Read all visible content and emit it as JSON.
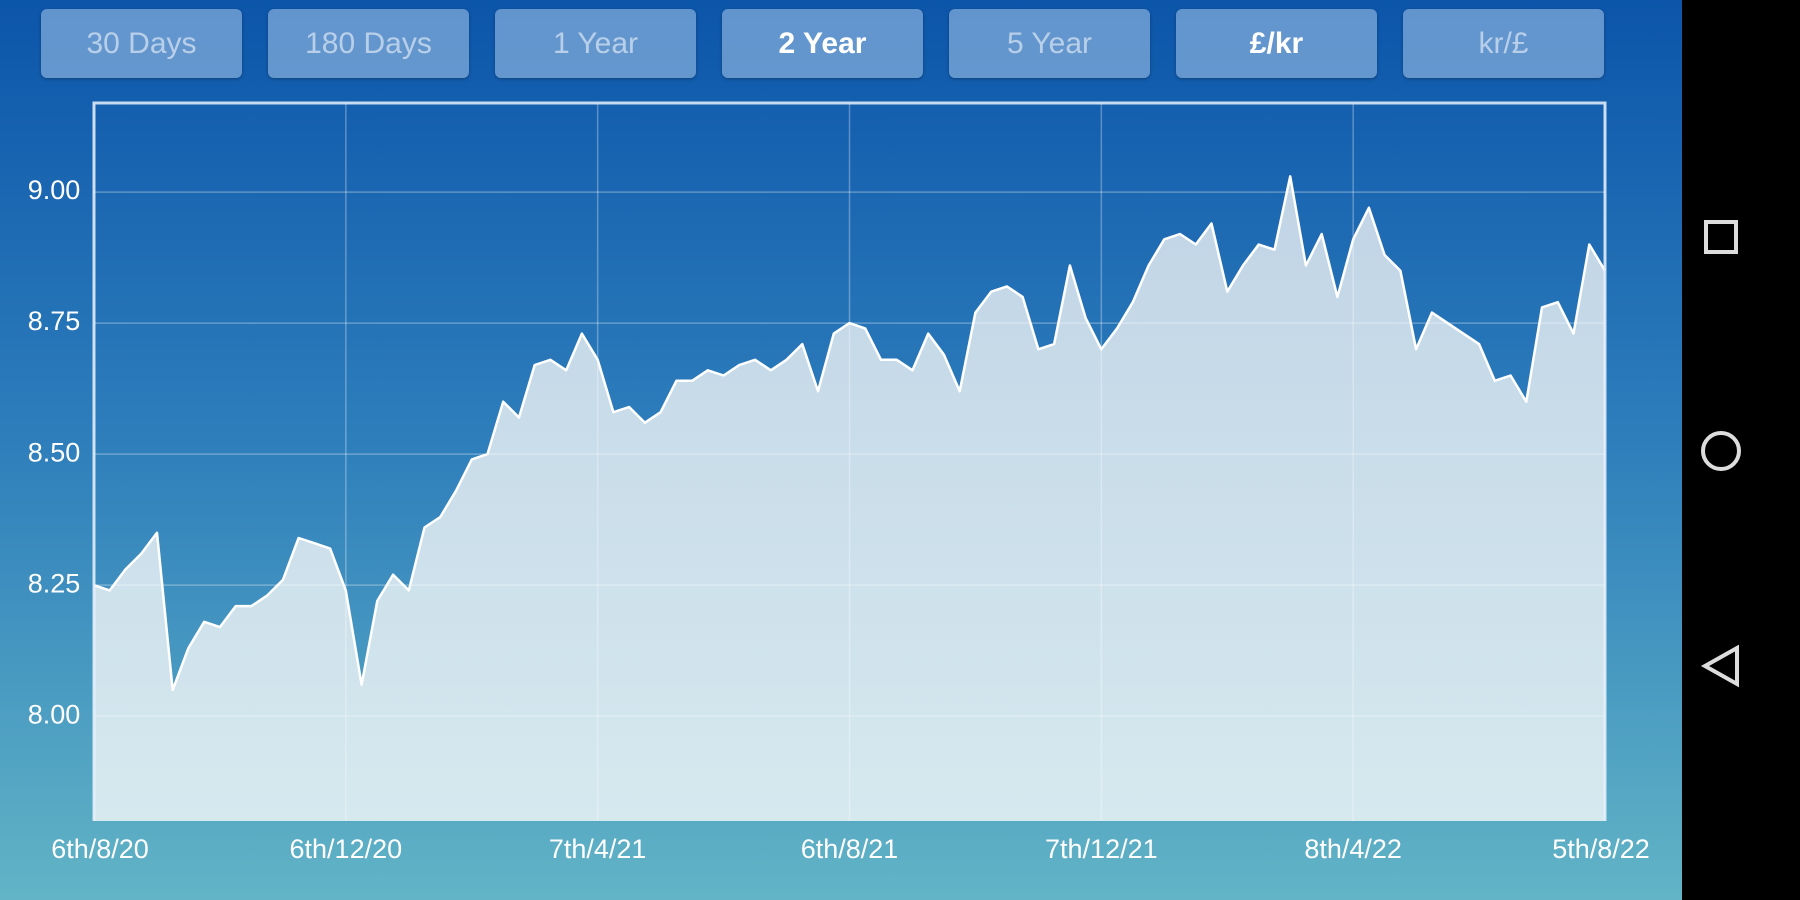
{
  "buttons": [
    {
      "label": "30 Days",
      "selected": false
    },
    {
      "label": "180 Days",
      "selected": false
    },
    {
      "label": "1 Year",
      "selected": false
    },
    {
      "label": "2 Year",
      "selected": true
    },
    {
      "label": "5 Year",
      "selected": false
    },
    {
      "label": "£/kr",
      "selected": true
    },
    {
      "label": "kr/£",
      "selected": false
    }
  ],
  "chart_data": {
    "type": "area",
    "categories": [
      "6th/8/20",
      null,
      null,
      null,
      null,
      null,
      null,
      null,
      null,
      null,
      null,
      null,
      null,
      null,
      null,
      null,
      "6th/12/20",
      null,
      null,
      null,
      null,
      null,
      null,
      null,
      null,
      null,
      null,
      null,
      null,
      null,
      null,
      null,
      "7th/4/21",
      null,
      null,
      null,
      null,
      null,
      null,
      null,
      null,
      null,
      null,
      null,
      null,
      null,
      null,
      null,
      "6th/8/21",
      null,
      null,
      null,
      null,
      null,
      null,
      null,
      null,
      null,
      null,
      null,
      null,
      null,
      null,
      null,
      "7th/12/21",
      null,
      null,
      null,
      null,
      null,
      null,
      null,
      null,
      null,
      null,
      null,
      null,
      null,
      null,
      null,
      "8th/4/22",
      null,
      null,
      null,
      null,
      null,
      null,
      null,
      null,
      null,
      null,
      null,
      null,
      null,
      null,
      null,
      "5th/8/22"
    ],
    "values": [
      8.25,
      8.24,
      8.28,
      8.31,
      8.35,
      8.05,
      8.13,
      8.18,
      8.17,
      8.21,
      8.21,
      8.23,
      8.26,
      8.34,
      8.33,
      8.32,
      8.24,
      8.06,
      8.22,
      8.27,
      8.24,
      8.36,
      8.38,
      8.43,
      8.49,
      8.5,
      8.6,
      8.57,
      8.67,
      8.68,
      8.66,
      8.73,
      8.68,
      8.58,
      8.59,
      8.56,
      8.58,
      8.64,
      8.64,
      8.66,
      8.65,
      8.67,
      8.68,
      8.66,
      8.68,
      8.71,
      8.62,
      8.73,
      8.75,
      8.74,
      8.68,
      8.68,
      8.66,
      8.73,
      8.69,
      8.62,
      8.77,
      8.81,
      8.82,
      8.8,
      8.7,
      8.71,
      8.86,
      8.76,
      8.7,
      8.74,
      8.79,
      8.86,
      8.91,
      8.92,
      8.9,
      8.94,
      8.81,
      8.86,
      8.9,
      8.89,
      9.03,
      8.86,
      8.92,
      8.8,
      8.91,
      8.97,
      8.88,
      8.85,
      8.7,
      8.77,
      8.75,
      8.73,
      8.71,
      8.64,
      8.65,
      8.6,
      8.78,
      8.79,
      8.73,
      8.9,
      8.85
    ],
    "color": "#ffffff",
    "ylim": [
      7.8,
      9.17
    ],
    "yticks": [
      {
        "value": 8,
        "label": "8.00"
      },
      {
        "value": 8.25,
        "label": "8.25"
      },
      {
        "value": 8.5,
        "label": "8.50"
      },
      {
        "value": 8.75,
        "label": "8.75"
      },
      {
        "value": 9,
        "label": "9.00"
      }
    ],
    "grid": true
  }
}
